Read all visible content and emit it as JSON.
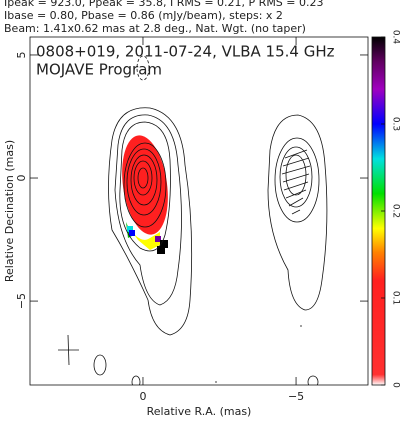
{
  "chart_data": {
    "type": "contour",
    "header_lines": [
      "Ipeak = 923.0, Ppeak = 35.8, I RMS = 0.21, P RMS = 0.23",
      "Ibase = 0.80, Pbase = 0.86 (mJy/beam), steps: x 2",
      "Beam: 1.41x0.62 mas at 2.8 deg., Nat. Wgt. (no taper)"
    ],
    "annotations": [
      "0808+019, 2011-07-24, VLBA 15.4 GHz",
      "MOJAVE Program"
    ],
    "xlabel": "Relative R.A. (mas)",
    "ylabel": "Relative Decination (mas)",
    "xlim": [
      3.69,
      -7.35
    ],
    "ylim": [
      -8.41,
      5.73
    ],
    "xticks": [
      0,
      {
        "value": -5,
        "label": "−5"
      }
    ],
    "yticks": [
      {
        "value": -5,
        "label": "−5"
      },
      0,
      5
    ],
    "colorbar": {
      "lim": [
        0,
        0.4
      ],
      "ticks": [
        0,
        0.1,
        0.2,
        0.3,
        0.4
      ]
    }
  }
}
